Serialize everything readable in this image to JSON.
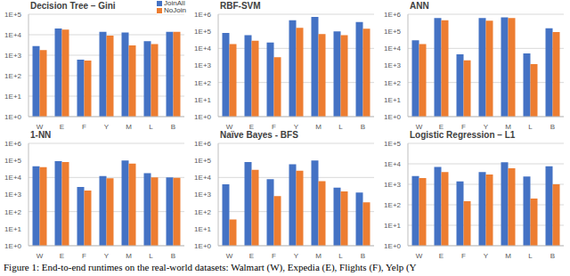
{
  "caption": "Figure 1: End-to-end runtimes on the real-world datasets: Walmart (W), Expedia (E), Flights (F), Yelp (Y",
  "chart_data": [
    {
      "type": "bar",
      "title": "Decision Tree – Gini",
      "categories": [
        "W",
        "E",
        "F",
        "Y",
        "M",
        "L",
        "B"
      ],
      "log": "y",
      "grid": true,
      "legend": "top-right",
      "ylim": [
        1,
        100000
      ],
      "yticks": [
        {
          "value": 1,
          "label": "1E+0"
        },
        {
          "value": 10,
          "label": "1E+1"
        },
        {
          "value": 100,
          "label": "1E+2"
        },
        {
          "value": 1000,
          "label": "1E+3"
        },
        {
          "value": 10000,
          "label": "1E+4"
        },
        {
          "value": 100000,
          "label": "1E+5"
        }
      ],
      "series": [
        {
          "name": "JoinAll",
          "color": "#4472c4",
          "values": [
            2800,
            20000,
            600,
            14000,
            13000,
            4800,
            14000
          ]
        },
        {
          "name": "NoJoin",
          "color": "#ed7d31",
          "values": [
            1800,
            18000,
            550,
            9000,
            3000,
            3500,
            14000
          ]
        }
      ]
    },
    {
      "type": "bar",
      "title": "RBF-SVM",
      "categories": [
        "W",
        "E",
        "F",
        "Y",
        "M",
        "L",
        "B"
      ],
      "log": "y",
      "grid": true,
      "ylim": [
        1,
        1000000
      ],
      "yticks": [
        {
          "value": 1,
          "label": "1E+0"
        },
        {
          "value": 10,
          "label": "1E+1"
        },
        {
          "value": 100,
          "label": "1E+2"
        },
        {
          "value": 1000,
          "label": "1E+3"
        },
        {
          "value": 10000,
          "label": "1E+4"
        },
        {
          "value": 100000,
          "label": "1E+5"
        },
        {
          "value": 1000000,
          "label": "1E+6"
        }
      ],
      "series": [
        {
          "name": "JoinAll",
          "color": "#4472c4",
          "values": [
            80000,
            60000,
            22000,
            450000,
            700000,
            100000,
            350000
          ]
        },
        {
          "name": "NoJoin",
          "color": "#ed7d31",
          "values": [
            18000,
            28000,
            3000,
            160000,
            70000,
            60000,
            140000
          ]
        }
      ]
    },
    {
      "type": "bar",
      "title": "ANN",
      "categories": [
        "W",
        "E",
        "F",
        "Y",
        "M",
        "L",
        "B"
      ],
      "log": "y",
      "grid": true,
      "ylim": [
        1,
        1000000
      ],
      "yticks": [
        {
          "value": 1,
          "label": "1E+0"
        },
        {
          "value": 10,
          "label": "1E+1"
        },
        {
          "value": 100,
          "label": "1E+2"
        },
        {
          "value": 1000,
          "label": "1E+3"
        },
        {
          "value": 10000,
          "label": "1E+4"
        },
        {
          "value": 100000,
          "label": "1E+5"
        },
        {
          "value": 1000000,
          "label": "1E+6"
        }
      ],
      "series": [
        {
          "name": "JoinAll",
          "color": "#4472c4",
          "values": [
            30000,
            600000,
            4500,
            600000,
            650000,
            5000,
            150000
          ]
        },
        {
          "name": "NoJoin",
          "color": "#ed7d31",
          "values": [
            18000,
            450000,
            2000,
            420000,
            600000,
            1200,
            90000
          ]
        }
      ]
    },
    {
      "type": "bar",
      "title": "1-NN",
      "categories": [
        "W",
        "E",
        "F",
        "Y",
        "M",
        "L",
        "B"
      ],
      "log": "y",
      "grid": true,
      "ylim": [
        1,
        1000000
      ],
      "yticks": [
        {
          "value": 1,
          "label": "1E+0"
        },
        {
          "value": 10,
          "label": "1E+1"
        },
        {
          "value": 100,
          "label": "1E+2"
        },
        {
          "value": 1000,
          "label": "1E+3"
        },
        {
          "value": 10000,
          "label": "1E+4"
        },
        {
          "value": 100000,
          "label": "1E+5"
        },
        {
          "value": 1000000,
          "label": "1E+6"
        }
      ],
      "series": [
        {
          "name": "JoinAll",
          "color": "#4472c4",
          "values": [
            45000,
            90000,
            2800,
            12000,
            100000,
            18000,
            10000
          ]
        },
        {
          "name": "NoJoin",
          "color": "#ed7d31",
          "values": [
            40000,
            80000,
            1700,
            9000,
            65000,
            10000,
            9500
          ]
        }
      ]
    },
    {
      "type": "bar",
      "title": "Naïve Bayes - BFS",
      "categories": [
        "W",
        "E",
        "F",
        "Y",
        "M",
        "L",
        "B"
      ],
      "log": "y",
      "grid": true,
      "ylim": [
        1,
        1000000
      ],
      "yticks": [
        {
          "value": 1,
          "label": "1E+0"
        },
        {
          "value": 10,
          "label": "1E+1"
        },
        {
          "value": 100,
          "label": "1E+2"
        },
        {
          "value": 1000,
          "label": "1E+3"
        },
        {
          "value": 10000,
          "label": "1E+4"
        },
        {
          "value": 100000,
          "label": "1E+5"
        },
        {
          "value": 1000000,
          "label": "1E+6"
        }
      ],
      "series": [
        {
          "name": "JoinAll",
          "color": "#4472c4",
          "values": [
            4000,
            80000,
            8000,
            60000,
            100000,
            2500,
            1300
          ]
        },
        {
          "name": "NoJoin",
          "color": "#ed7d31",
          "values": [
            35,
            28000,
            800,
            25000,
            6000,
            1500,
            350
          ]
        }
      ]
    },
    {
      "type": "bar",
      "title": "Logistic Regression – L1",
      "categories": [
        "W",
        "E",
        "F",
        "Y",
        "M",
        "L",
        "B"
      ],
      "log": "y",
      "grid": true,
      "ylim": [
        1,
        100000
      ],
      "yticks": [
        {
          "value": 1,
          "label": "1E+0"
        },
        {
          "value": 10,
          "label": "1E+1"
        },
        {
          "value": 100,
          "label": "1E+2"
        },
        {
          "value": 1000,
          "label": "1E+3"
        },
        {
          "value": 10000,
          "label": "1E+4"
        },
        {
          "value": 100000,
          "label": "1E+5"
        }
      ],
      "series": [
        {
          "name": "JoinAll",
          "color": "#4472c4",
          "values": [
            2500,
            7000,
            1400,
            4000,
            12000,
            2400,
            7500
          ]
        },
        {
          "name": "NoJoin",
          "color": "#ed7d31",
          "values": [
            2000,
            4000,
            150,
            3000,
            6000,
            200,
            1000
          ]
        }
      ]
    }
  ]
}
